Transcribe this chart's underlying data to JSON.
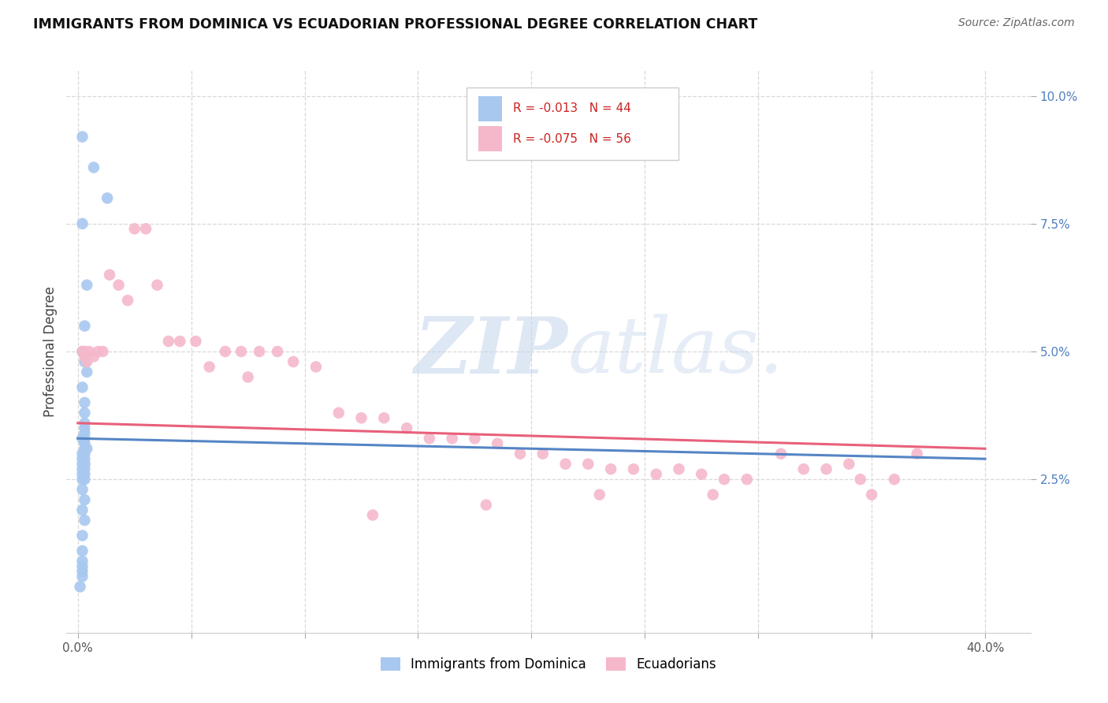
{
  "title": "IMMIGRANTS FROM DOMINICA VS ECUADORIAN PROFESSIONAL DEGREE CORRELATION CHART",
  "source": "Source: ZipAtlas.com",
  "xlabel_ticks": [
    "0.0%",
    "",
    "",
    "",
    "",
    "",
    "",
    "",
    "40.0%"
  ],
  "xlabel_vals": [
    0.0,
    0.05,
    0.1,
    0.15,
    0.2,
    0.25,
    0.3,
    0.35,
    0.4
  ],
  "ylabel_ticks": [
    "2.5%",
    "5.0%",
    "7.5%",
    "10.0%"
  ],
  "ylabel_vals": [
    0.025,
    0.05,
    0.075,
    0.1
  ],
  "xlim": [
    -0.005,
    0.42
  ],
  "ylim": [
    -0.005,
    0.105
  ],
  "legend_r1": "-0.013",
  "legend_n1": "44",
  "legend_r2": "-0.075",
  "legend_n2": "56",
  "blue_color": "#a8c8f0",
  "pink_color": "#f5b8cb",
  "trend_blue_color": "#5585c5",
  "trend_pink_color": "#e8607a",
  "ylabel": "Professional Degree",
  "blue_x": [
    0.002,
    0.007,
    0.013,
    0.002,
    0.004,
    0.003,
    0.002,
    0.003,
    0.004,
    0.002,
    0.003,
    0.003,
    0.003,
    0.003,
    0.003,
    0.002,
    0.003,
    0.003,
    0.004,
    0.003,
    0.002,
    0.003,
    0.003,
    0.002,
    0.003,
    0.002,
    0.003,
    0.002,
    0.003,
    0.003,
    0.002,
    0.002,
    0.003,
    0.002,
    0.003,
    0.002,
    0.003,
    0.002,
    0.002,
    0.002,
    0.002,
    0.002,
    0.002,
    0.001
  ],
  "blue_y": [
    0.092,
    0.086,
    0.08,
    0.075,
    0.063,
    0.055,
    0.05,
    0.048,
    0.046,
    0.043,
    0.04,
    0.038,
    0.036,
    0.035,
    0.034,
    0.033,
    0.033,
    0.032,
    0.031,
    0.031,
    0.03,
    0.03,
    0.029,
    0.029,
    0.028,
    0.028,
    0.028,
    0.027,
    0.027,
    0.026,
    0.026,
    0.025,
    0.025,
    0.023,
    0.021,
    0.019,
    0.017,
    0.014,
    0.011,
    0.009,
    0.008,
    0.007,
    0.006,
    0.004
  ],
  "pink_x": [
    0.002,
    0.003,
    0.004,
    0.003,
    0.005,
    0.007,
    0.009,
    0.011,
    0.014,
    0.018,
    0.022,
    0.025,
    0.03,
    0.035,
    0.04,
    0.045,
    0.052,
    0.058,
    0.065,
    0.072,
    0.08,
    0.088,
    0.095,
    0.105,
    0.115,
    0.125,
    0.135,
    0.145,
    0.155,
    0.165,
    0.175,
    0.185,
    0.195,
    0.205,
    0.215,
    0.225,
    0.235,
    0.245,
    0.255,
    0.265,
    0.275,
    0.285,
    0.295,
    0.31,
    0.32,
    0.33,
    0.34,
    0.35,
    0.36,
    0.37,
    0.345,
    0.28,
    0.23,
    0.18,
    0.13,
    0.075
  ],
  "pink_y": [
    0.05,
    0.049,
    0.048,
    0.05,
    0.05,
    0.049,
    0.05,
    0.05,
    0.065,
    0.063,
    0.06,
    0.074,
    0.074,
    0.063,
    0.052,
    0.052,
    0.052,
    0.047,
    0.05,
    0.05,
    0.05,
    0.05,
    0.048,
    0.047,
    0.038,
    0.037,
    0.037,
    0.035,
    0.033,
    0.033,
    0.033,
    0.032,
    0.03,
    0.03,
    0.028,
    0.028,
    0.027,
    0.027,
    0.026,
    0.027,
    0.026,
    0.025,
    0.025,
    0.03,
    0.027,
    0.027,
    0.028,
    0.022,
    0.025,
    0.03,
    0.025,
    0.022,
    0.022,
    0.02,
    0.018,
    0.045
  ],
  "blue_trend_x0": 0.0,
  "blue_trend_x1": 0.4,
  "blue_trend_y0": 0.033,
  "blue_trend_y1": 0.029,
  "pink_trend_x0": 0.0,
  "pink_trend_x1": 0.4,
  "pink_trend_y0": 0.036,
  "pink_trend_y1": 0.031,
  "watermark_color": "#c8d8ee",
  "grid_color": "#d8d8d8",
  "tick_color": "#aaaaaa",
  "right_tick_color": "#5080c0"
}
